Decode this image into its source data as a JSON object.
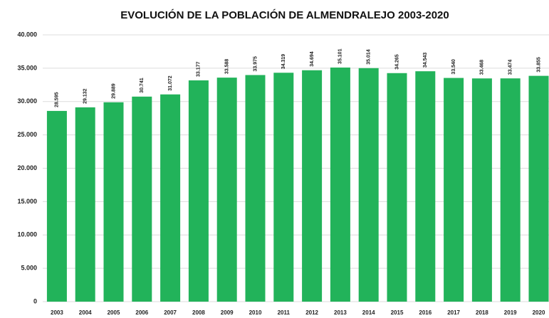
{
  "chart_data": {
    "type": "bar",
    "title": "EVOLUCIÓN DE LA POBLACIÓN DE ALMENDRALEJO 2003-2020",
    "categories": [
      "2003",
      "2004",
      "2005",
      "2006",
      "2007",
      "2008",
      "2009",
      "2010",
      "2011",
      "2012",
      "2013",
      "2014",
      "2015",
      "2016",
      "2017",
      "2018",
      "2019",
      "2020"
    ],
    "values": [
      28595,
      29132,
      29889,
      30741,
      31072,
      33177,
      33588,
      33975,
      34319,
      34694,
      35101,
      35014,
      34265,
      34543,
      33540,
      33468,
      33474,
      33855
    ],
    "value_labels": [
      "28.595",
      "29.132",
      "29.889",
      "30.741",
      "31.072",
      "33.177",
      "33.588",
      "33.975",
      "34.319",
      "34.694",
      "35.101",
      "35.014",
      "34.265",
      "34.543",
      "33.540",
      "33.468",
      "33.474",
      "33.855"
    ],
    "color": "#22b35a",
    "ylim": [
      0,
      40000
    ],
    "yticks": [
      0,
      {
        "value": 5000,
        "label": "5.000"
      },
      {
        "value": 10000,
        "label": "10.000"
      },
      {
        "value": 15000,
        "label": "15.000"
      },
      {
        "value": 20000,
        "label": "20.000"
      },
      {
        "value": 25000,
        "label": "25.000"
      },
      {
        "value": 30000,
        "label": "30.000"
      },
      {
        "value": 35000,
        "label": "35.000"
      },
      {
        "value": 40000,
        "label": "40.000"
      }
    ],
    "grid": true
  }
}
